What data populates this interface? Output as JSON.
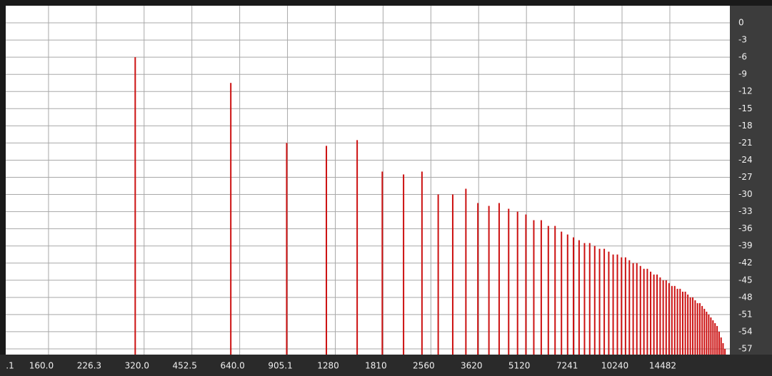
{
  "chart_data": {
    "type": "bar",
    "log_x": true,
    "grid": true,
    "color": "#cc1111",
    "x": [
      300,
      600,
      900,
      1200,
      1500,
      1800,
      2100,
      2400,
      2700,
      3000,
      3300,
      3600,
      3900,
      4200,
      4500,
      4800,
      5100,
      5400,
      5700,
      6000,
      6300,
      6600,
      6900,
      7200,
      7500,
      7800,
      8100,
      8400,
      8700,
      9000,
      9300,
      9600,
      9900,
      10200,
      10500,
      10800,
      11100,
      11400,
      11700,
      12000,
      12300,
      12600,
      12900,
      13200,
      13500,
      13800,
      14100,
      14400,
      14700,
      15000,
      15300,
      15600,
      15900,
      16200,
      16500,
      16800,
      17100,
      17400,
      17700,
      18000,
      18300,
      18600,
      18900,
      19200,
      19500,
      19800,
      20100,
      20400,
      20700,
      21000,
      21300,
      21600,
      21900
    ],
    "values": [
      -6,
      -10.5,
      -21,
      -21.5,
      -20.5,
      -26,
      -26.5,
      -26,
      -30,
      -30,
      -29,
      -31.5,
      -32,
      -31.5,
      -32.5,
      -33,
      -33.5,
      -34.5,
      -34.5,
      -35.5,
      -35.5,
      -36.5,
      -37,
      -37.5,
      -38,
      -38.5,
      -38.5,
      -39,
      -39.5,
      -39.5,
      -40,
      -40.5,
      -40.5,
      -41,
      -41,
      -41.5,
      -42,
      -42,
      -42.5,
      -43,
      -43,
      -43.5,
      -44,
      -44,
      -44.5,
      -45,
      -45,
      -45.5,
      -46,
      -46,
      -46.5,
      -46.5,
      -47,
      -47,
      -47.5,
      -48,
      -48,
      -48.5,
      -49,
      -49,
      -49.5,
      -50,
      -50.5,
      -51,
      -51.5,
      -52,
      -52.5,
      -53,
      -54,
      -55,
      -56,
      -57,
      -58
    ],
    "xlim": [
      117.3,
      22380
    ],
    "xticks": [
      {
        "value": 113.1,
        "label": ".1"
      },
      {
        "value": 160,
        "label": "160.0"
      },
      {
        "value": 226.3,
        "label": "226.3"
      },
      {
        "value": 320,
        "label": "320.0"
      },
      {
        "value": 452.5,
        "label": "452.5"
      },
      {
        "value": 640,
        "label": "640.0"
      },
      {
        "value": 905.1,
        "label": "905.1"
      },
      1280,
      1810,
      2560,
      3620,
      5120,
      7241,
      10240,
      14482
    ],
    "ylim": [
      -58,
      3
    ],
    "yticks": [
      0,
      -3,
      -6,
      -9,
      -12,
      -15,
      -18,
      -21,
      -24,
      -27,
      -30,
      -33,
      -36,
      -39,
      -42,
      -45,
      -48,
      -51,
      -54,
      -57
    ]
  }
}
